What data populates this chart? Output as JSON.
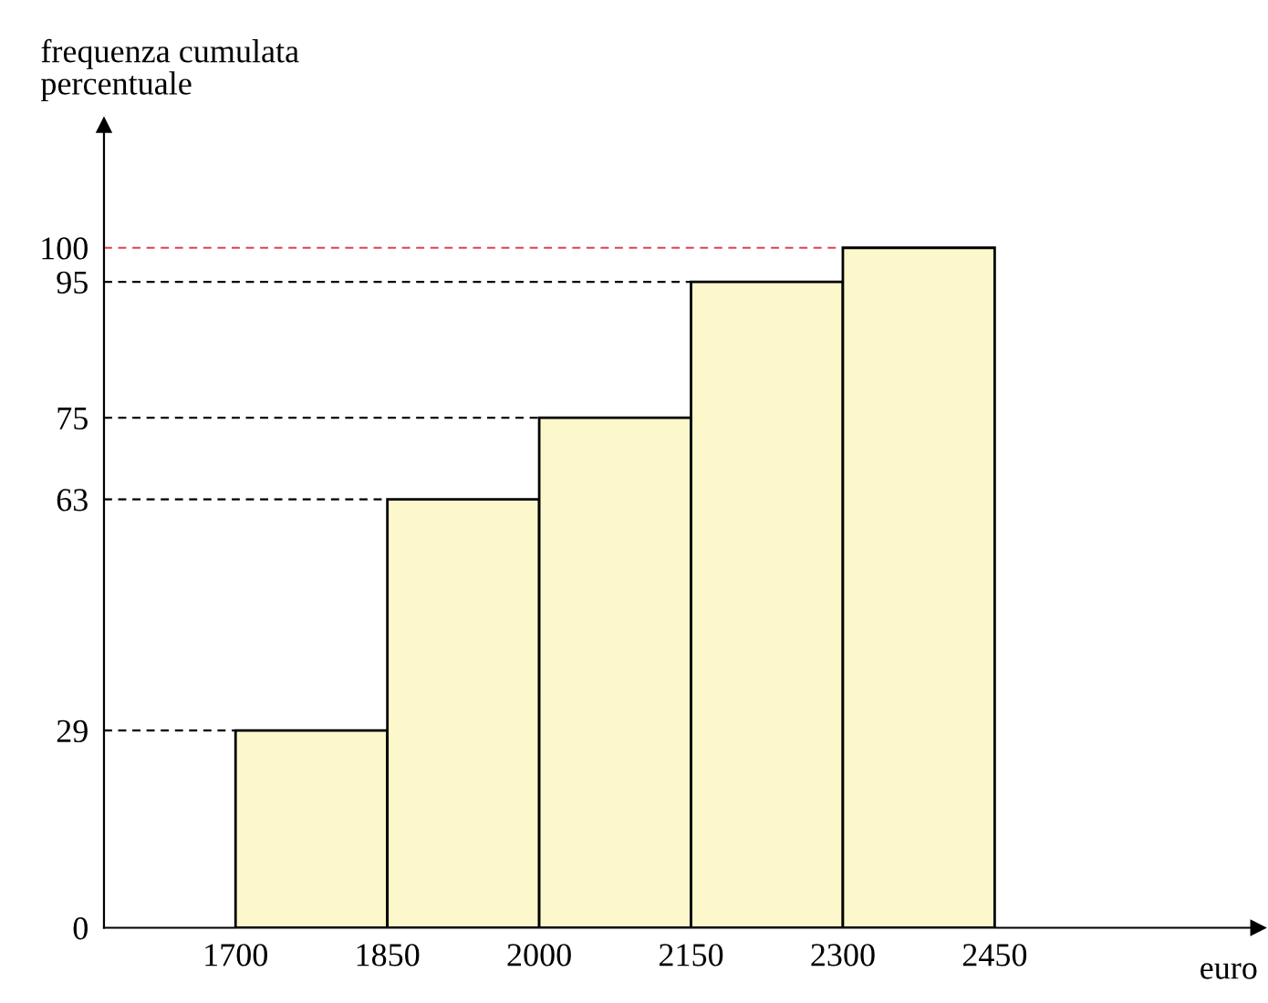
{
  "chart_data": {
    "type": "histogram",
    "bins": [
      1700,
      1850,
      2000,
      2150,
      2300,
      2450
    ],
    "values": [
      29,
      63,
      75,
      95,
      100
    ],
    "color": "#fdf7cc",
    "xlabel": "euro",
    "ylabel": "frequenza cumulata\npercentuale",
    "xlim": [
      1570,
      2710
    ],
    "ylim": [
      0,
      118
    ],
    "xticks": [
      1700,
      1850,
      2000,
      2150,
      2300,
      2450
    ],
    "yticks": [
      0,
      29,
      63,
      75,
      95,
      100
    ],
    "ref_lines": [
      {
        "axis": "y",
        "value": 29,
        "color": "#000000",
        "line_style": "dashed"
      },
      {
        "axis": "y",
        "value": 63,
        "color": "#000000",
        "line_style": "dashed"
      },
      {
        "axis": "y",
        "value": 75,
        "color": "#000000",
        "line_style": "dashed"
      },
      {
        "axis": "y",
        "value": 95,
        "color": "#000000",
        "line_style": "dashed"
      },
      {
        "axis": "y",
        "value": 100,
        "color": "#e0404f",
        "line_style": "dashed"
      }
    ],
    "grid": false,
    "legend": false
  }
}
